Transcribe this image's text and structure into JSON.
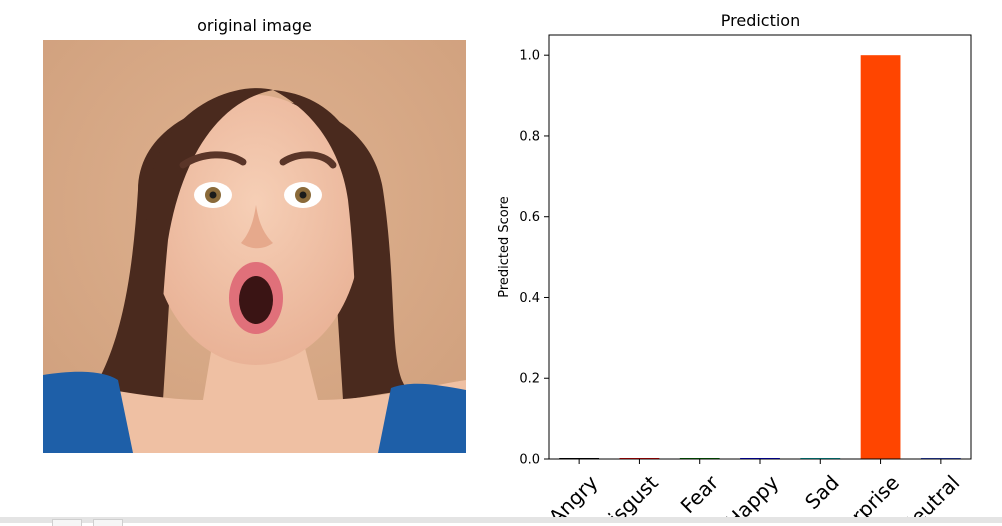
{
  "image_panel": {
    "title": "original image",
    "subject": "photo of a surprised woman"
  },
  "chart_data": {
    "type": "bar",
    "title": "Prediction",
    "xlabel": "",
    "ylabel": "Predicted Score",
    "categories": [
      "Angry",
      "Disgust",
      "Fear",
      "Happy",
      "Sad",
      "Surprise",
      "Neutral"
    ],
    "values": [
      0.0,
      0.0,
      0.0,
      0.0,
      0.0,
      1.0,
      0.0
    ],
    "colors": [
      "#000000",
      "#ff0000",
      "#008000",
      "#0000ff",
      "#00bfbf",
      "#ff4500",
      "#2f4fe0"
    ],
    "ylim": [
      0,
      1.05
    ],
    "yticks": [
      "0.0",
      "0.2",
      "0.4",
      "0.6",
      "0.8",
      "1.0"
    ],
    "grid": false,
    "legend": "none"
  },
  "colors": {
    "background": "#d9a987",
    "hair": "#4a2a1e",
    "skin": "#f1c3a8",
    "top": "#1e5fa8"
  }
}
